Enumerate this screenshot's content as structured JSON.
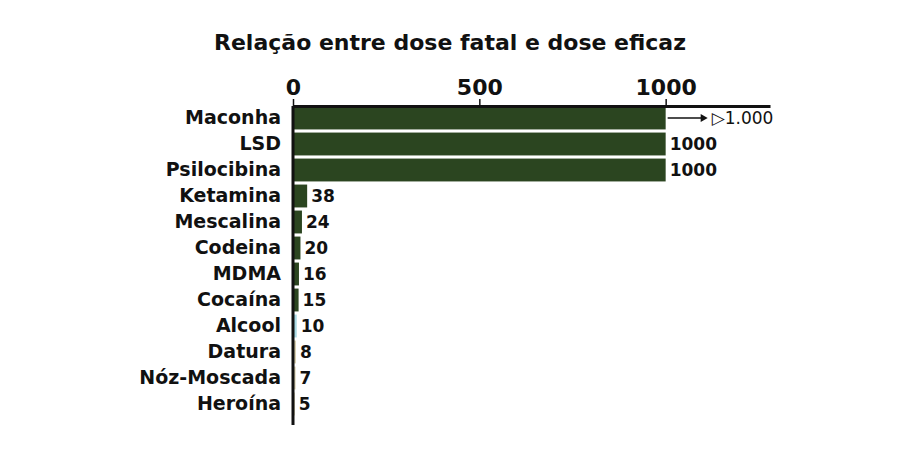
{
  "chart_data": {
    "type": "bar",
    "orientation": "horizontal",
    "title": "Relação entre dose fatal e dose eficaz",
    "categories": [
      "Maconha",
      "LSD",
      "Psilocibina",
      "Ketamina",
      "Mescalina",
      "Codeina",
      "MDMA",
      "Cocaína",
      "Alcool",
      "Datura",
      "Nóz-Moscada",
      "Heroína"
    ],
    "values": [
      1000,
      1000,
      1000,
      38,
      24,
      20,
      16,
      15,
      10,
      8,
      7,
      5
    ],
    "value_labels": [
      "▷1.000",
      "1000",
      "1000",
      "38",
      "24",
      "20",
      "16",
      "15",
      "10",
      "8",
      "7",
      "5"
    ],
    "colors": [
      "#2b4520",
      "#2b4520",
      "#2b4520",
      "#2b4520",
      "#2b4520",
      "#2b4520",
      "#2b4520",
      "#2b4520",
      "#a9d9e3",
      "#d8d0b0",
      "#d8d0b0",
      "#d8d0b0"
    ],
    "xlim": [
      0,
      1280
    ],
    "xticks": [
      0,
      500,
      1000
    ],
    "grid": false,
    "data_labels": true
  }
}
